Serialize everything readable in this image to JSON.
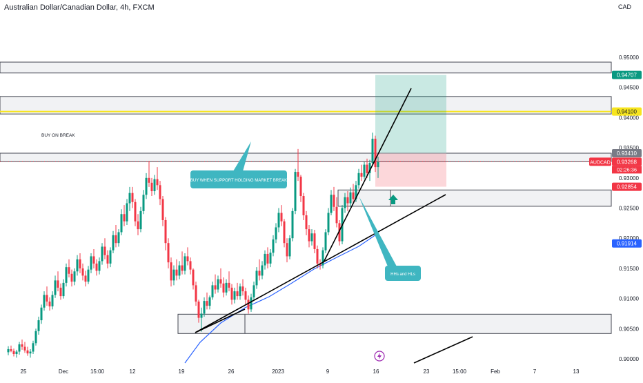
{
  "title": "Australian Dollar/Canadian Dollar, 4h, FXCM",
  "currency": "CAD",
  "chart_data": {
    "type": "candlestick",
    "symbol": "AUDCAD",
    "timeframe": "4h",
    "ylim": [
      0.9,
      0.9595
    ],
    "y_ticks": [
      "0.95000",
      "0.94500",
      "0.94000",
      "0.93500",
      "0.93000",
      "0.92500",
      "0.92000",
      "0.91500",
      "0.91000",
      "0.90500",
      "0.90000"
    ],
    "x_ticks": [
      "25",
      "Dec",
      "15:00",
      "12",
      "19",
      "26",
      "2023",
      "9",
      "16",
      "23",
      "15:00",
      "Feb",
      "7",
      "13"
    ],
    "price_labels": [
      {
        "text": "0.94707",
        "value": 0.94707,
        "color": "#089981"
      },
      {
        "text": "0.94100",
        "value": 0.941,
        "color": "#f7e51e"
      },
      {
        "text": "0.93410",
        "value": 0.9341,
        "color": "#787b86"
      },
      {
        "text": "0.93268",
        "value": 0.93268,
        "color": "#f23645"
      },
      {
        "text": "0.92854",
        "value": 0.92854,
        "color": "#f23645"
      },
      {
        "text": "0.91914",
        "value": 0.91914,
        "color": "#2962ff"
      }
    ],
    "symbol_tag": {
      "text": "AUDCAD",
      "value": 0.93268,
      "color": "#f23645"
    },
    "countdown": "02:26:36",
    "zones": [
      {
        "top": 0.9492,
        "bottom": 0.9474
      },
      {
        "top": 0.9435,
        "bottom": 0.9406
      },
      {
        "top": 0.9341,
        "bottom": 0.9327
      },
      {
        "top": 0.928,
        "bottom": 0.9253
      },
      {
        "top": 0.9074,
        "bottom": 0.9042
      }
    ],
    "horizontal_line": {
      "value": 0.941,
      "color": "#f7e51e"
    },
    "annotations": [
      {
        "text": "BUY ON BREAK"
      },
      {
        "text": "BUY WHEN SUPPORT HOLDING MARKET BREAK"
      },
      {
        "text": "HHs and HLs"
      }
    ],
    "candles": [
      [
        0.9011,
        0.9021,
        0.9006,
        0.9016
      ],
      [
        0.9016,
        0.9022,
        0.9011,
        0.9013
      ],
      [
        0.9013,
        0.9017,
        0.9004,
        0.9008
      ],
      [
        0.9008,
        0.9015,
        0.9002,
        0.9012
      ],
      [
        0.9012,
        0.9028,
        0.9007,
        0.9024
      ],
      [
        0.9024,
        0.9032,
        0.9015,
        0.902
      ],
      [
        0.902,
        0.9028,
        0.901,
        0.9014
      ],
      [
        0.9014,
        0.902,
        0.9005,
        0.9009
      ],
      [
        0.9009,
        0.9016,
        0.9002,
        0.9012
      ],
      [
        0.9012,
        0.903,
        0.9008,
        0.9026
      ],
      [
        0.9026,
        0.905,
        0.9022,
        0.9046
      ],
      [
        0.9046,
        0.907,
        0.904,
        0.9064
      ],
      [
        0.9064,
        0.909,
        0.9058,
        0.9085
      ],
      [
        0.9085,
        0.9112,
        0.908,
        0.9106
      ],
      [
        0.9106,
        0.912,
        0.9088,
        0.9095
      ],
      [
        0.9095,
        0.9102,
        0.908,
        0.9087
      ],
      [
        0.9087,
        0.9112,
        0.9082,
        0.9106
      ],
      [
        0.9106,
        0.9138,
        0.9101,
        0.913
      ],
      [
        0.913,
        0.9145,
        0.9112,
        0.9118
      ],
      [
        0.9118,
        0.9125,
        0.9098,
        0.9104
      ],
      [
        0.9104,
        0.9132,
        0.91,
        0.9126
      ],
      [
        0.9126,
        0.9158,
        0.912,
        0.9152
      ],
      [
        0.9152,
        0.9165,
        0.9135,
        0.9141
      ],
      [
        0.9141,
        0.9148,
        0.912,
        0.9128
      ],
      [
        0.9128,
        0.915,
        0.9122,
        0.9145
      ],
      [
        0.9145,
        0.9172,
        0.9138,
        0.9165
      ],
      [
        0.9165,
        0.9175,
        0.9142,
        0.915
      ],
      [
        0.915,
        0.9158,
        0.913,
        0.9138
      ],
      [
        0.9138,
        0.9146,
        0.912,
        0.9128
      ],
      [
        0.9128,
        0.9154,
        0.9124,
        0.9148
      ],
      [
        0.9148,
        0.9175,
        0.9142,
        0.917
      ],
      [
        0.917,
        0.9182,
        0.915,
        0.9158
      ],
      [
        0.9158,
        0.9165,
        0.9138,
        0.9146
      ],
      [
        0.9146,
        0.9168,
        0.914,
        0.9162
      ],
      [
        0.9162,
        0.9192,
        0.9156,
        0.9186
      ],
      [
        0.9186,
        0.92,
        0.9165,
        0.9172
      ],
      [
        0.9172,
        0.918,
        0.915,
        0.9158
      ],
      [
        0.9158,
        0.9185,
        0.9152,
        0.918
      ],
      [
        0.918,
        0.9212,
        0.9175,
        0.9205
      ],
      [
        0.9205,
        0.9222,
        0.9185,
        0.9192
      ],
      [
        0.9192,
        0.9215,
        0.9186,
        0.921
      ],
      [
        0.921,
        0.9248,
        0.9205,
        0.924
      ],
      [
        0.924,
        0.9255,
        0.922,
        0.9228
      ],
      [
        0.9228,
        0.9265,
        0.9222,
        0.9258
      ],
      [
        0.9258,
        0.9285,
        0.9245,
        0.9275
      ],
      [
        0.9275,
        0.9285,
        0.925,
        0.926
      ],
      [
        0.926,
        0.9265,
        0.922,
        0.9228
      ],
      [
        0.9228,
        0.924,
        0.9205,
        0.9215
      ],
      [
        0.9215,
        0.9252,
        0.921,
        0.9245
      ],
      [
        0.9245,
        0.928,
        0.924,
        0.9272
      ],
      [
        0.9272,
        0.9308,
        0.9265,
        0.93
      ],
      [
        0.93,
        0.9328,
        0.9285,
        0.9292
      ],
      [
        0.9292,
        0.93,
        0.927,
        0.9278
      ],
      [
        0.9278,
        0.9305,
        0.9272,
        0.9298
      ],
      [
        0.9298,
        0.9318,
        0.928,
        0.9288
      ],
      [
        0.9288,
        0.9295,
        0.9255,
        0.9265
      ],
      [
        0.9265,
        0.927,
        0.922,
        0.923
      ],
      [
        0.923,
        0.9235,
        0.918,
        0.9192
      ],
      [
        0.9192,
        0.92,
        0.915,
        0.916
      ],
      [
        0.916,
        0.9168,
        0.912,
        0.913
      ],
      [
        0.913,
        0.9155,
        0.9122,
        0.9148
      ],
      [
        0.9148,
        0.9165,
        0.913,
        0.9138
      ],
      [
        0.9138,
        0.9162,
        0.9132,
        0.9155
      ],
      [
        0.9155,
        0.9178,
        0.914,
        0.9146
      ],
      [
        0.9146,
        0.9175,
        0.914,
        0.917
      ],
      [
        0.917,
        0.9185,
        0.9155,
        0.9162
      ],
      [
        0.9162,
        0.9168,
        0.914,
        0.9148
      ],
      [
        0.9148,
        0.915,
        0.9115,
        0.9122
      ],
      [
        0.9122,
        0.9128,
        0.9088,
        0.9095
      ],
      [
        0.9095,
        0.9098,
        0.906,
        0.9068
      ],
      [
        0.9068,
        0.9085,
        0.9045,
        0.9075
      ],
      [
        0.9075,
        0.9102,
        0.907,
        0.9096
      ],
      [
        0.9096,
        0.911,
        0.9082,
        0.9088
      ],
      [
        0.9088,
        0.9105,
        0.9082,
        0.9102
      ],
      [
        0.9102,
        0.9128,
        0.9098,
        0.9122
      ],
      [
        0.9122,
        0.914,
        0.9108,
        0.9115
      ],
      [
        0.9115,
        0.9138,
        0.911,
        0.9132
      ],
      [
        0.9132,
        0.915,
        0.9118,
        0.9125
      ],
      [
        0.9125,
        0.9135,
        0.9102,
        0.911
      ],
      [
        0.911,
        0.9132,
        0.9105,
        0.9126
      ],
      [
        0.9126,
        0.9145,
        0.9112,
        0.9118
      ],
      [
        0.9118,
        0.9124,
        0.909,
        0.9098
      ],
      [
        0.9098,
        0.9118,
        0.9092,
        0.9112
      ],
      [
        0.9112,
        0.9126,
        0.9098,
        0.9104
      ],
      [
        0.9104,
        0.9125,
        0.9098,
        0.912
      ],
      [
        0.912,
        0.9132,
        0.9105,
        0.9112
      ],
      [
        0.9112,
        0.9118,
        0.909,
        0.9098
      ],
      [
        0.9098,
        0.9105,
        0.9075,
        0.9082
      ],
      [
        0.9082,
        0.9108,
        0.9078,
        0.9102
      ],
      [
        0.9102,
        0.9128,
        0.9098,
        0.9122
      ],
      [
        0.9122,
        0.9152,
        0.9116,
        0.9146
      ],
      [
        0.9146,
        0.9165,
        0.913,
        0.9138
      ],
      [
        0.9138,
        0.9162,
        0.9132,
        0.9155
      ],
      [
        0.9155,
        0.918,
        0.9148,
        0.9174
      ],
      [
        0.9174,
        0.9185,
        0.915,
        0.9158
      ],
      [
        0.9158,
        0.9182,
        0.9152,
        0.9176
      ],
      [
        0.9176,
        0.9205,
        0.917,
        0.9198
      ],
      [
        0.9198,
        0.9225,
        0.9192,
        0.9218
      ],
      [
        0.9218,
        0.925,
        0.921,
        0.9242
      ],
      [
        0.9242,
        0.9255,
        0.922,
        0.9228
      ],
      [
        0.9228,
        0.9232,
        0.9185,
        0.9192
      ],
      [
        0.9192,
        0.92,
        0.916,
        0.917
      ],
      [
        0.917,
        0.9205,
        0.9165,
        0.92
      ],
      [
        0.92,
        0.925,
        0.9195,
        0.9245
      ],
      [
        0.9245,
        0.9315,
        0.924,
        0.931
      ],
      [
        0.931,
        0.9348,
        0.9295,
        0.9302
      ],
      [
        0.9302,
        0.9305,
        0.926,
        0.927
      ],
      [
        0.927,
        0.9275,
        0.923,
        0.9238
      ],
      [
        0.9238,
        0.9245,
        0.9205,
        0.9215
      ],
      [
        0.9215,
        0.9222,
        0.9185,
        0.9195
      ],
      [
        0.9195,
        0.9215,
        0.9188,
        0.9208
      ],
      [
        0.9208,
        0.9214,
        0.9175,
        0.9182
      ],
      [
        0.9182,
        0.9188,
        0.915,
        0.9158
      ],
      [
        0.9158,
        0.9165,
        0.9148,
        0.9155
      ],
      [
        0.9155,
        0.9185,
        0.915,
        0.918
      ],
      [
        0.918,
        0.9215,
        0.9175,
        0.921
      ],
      [
        0.921,
        0.925,
        0.9205,
        0.9242
      ],
      [
        0.9242,
        0.928,
        0.9238,
        0.9272
      ],
      [
        0.9272,
        0.9285,
        0.9245,
        0.9252
      ],
      [
        0.9252,
        0.9268,
        0.9218,
        0.9225
      ],
      [
        0.9225,
        0.923,
        0.9188,
        0.9195
      ],
      [
        0.9195,
        0.9255,
        0.919,
        0.925
      ],
      [
        0.925,
        0.9275,
        0.9242,
        0.9268
      ],
      [
        0.9268,
        0.9278,
        0.9245,
        0.9258
      ],
      [
        0.9258,
        0.9284,
        0.9252,
        0.9276
      ],
      [
        0.9276,
        0.929,
        0.9258,
        0.9265
      ],
      [
        0.9265,
        0.9295,
        0.926,
        0.9288
      ],
      [
        0.9288,
        0.9315,
        0.9282,
        0.9308
      ],
      [
        0.9308,
        0.9322,
        0.9295,
        0.9302
      ],
      [
        0.9302,
        0.9328,
        0.9298,
        0.9322
      ],
      [
        0.9322,
        0.9332,
        0.93,
        0.9308
      ],
      [
        0.9308,
        0.933,
        0.9295,
        0.9325
      ],
      [
        0.9325,
        0.9375,
        0.932,
        0.9365
      ],
      [
        0.9365,
        0.937,
        0.931,
        0.9318
      ],
      [
        0.9318,
        0.9335,
        0.93,
        0.9327
      ]
    ]
  }
}
